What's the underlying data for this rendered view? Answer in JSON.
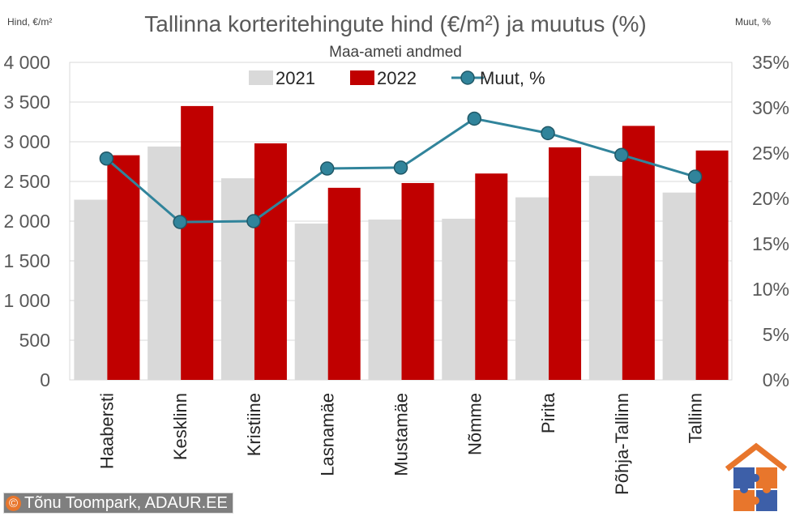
{
  "chart_data": {
    "type": "bar",
    "title": "Tallinna korteritehingute hind (€/m²) ja muutus (%)",
    "subtitle": "Maa-ameti andmed",
    "ylabel_left": "Hind, €/m²",
    "ylabel_right": "Muut, %",
    "categories": [
      "Haabersti",
      "Kesklinn",
      "Kristiine",
      "Lasnamäe",
      "Mustamäe",
      "Nõmme",
      "Pirita",
      "Põhja-Tallinn",
      "Tallinn"
    ],
    "series": [
      {
        "name": "2021",
        "kind": "bar",
        "axis": "left",
        "color": "#d9d9d9",
        "values": [
          2270,
          2940,
          2540,
          1970,
          2020,
          2030,
          2300,
          2570,
          2360
        ]
      },
      {
        "name": "2022",
        "kind": "bar",
        "axis": "left",
        "color": "#c00000",
        "values": [
          2830,
          3450,
          2980,
          2420,
          2480,
          2600,
          2930,
          3200,
          2890
        ]
      },
      {
        "name": "Muut, %",
        "kind": "line",
        "axis": "right",
        "color": "#31849b",
        "values": [
          24.4,
          17.4,
          17.5,
          23.3,
          23.4,
          28.8,
          27.2,
          24.8,
          22.4
        ]
      }
    ],
    "ylim_left": [
      0,
      4000
    ],
    "ylim_right": [
      0,
      35
    ],
    "yticks_left": [
      "0",
      "500",
      "1 000",
      "1 500",
      "2 000",
      "2 500",
      "3 000",
      "3 500",
      "4 000"
    ],
    "yticks_right": [
      "0%",
      "5%",
      "10%",
      "15%",
      "20%",
      "25%",
      "30%",
      "35%"
    ],
    "grid": true,
    "legend_position": "top"
  },
  "credit": {
    "symbol": "©",
    "text": "Tõnu Toompark, ADAUR.EE"
  },
  "logo": {
    "icon": "house-puzzle-logo"
  }
}
